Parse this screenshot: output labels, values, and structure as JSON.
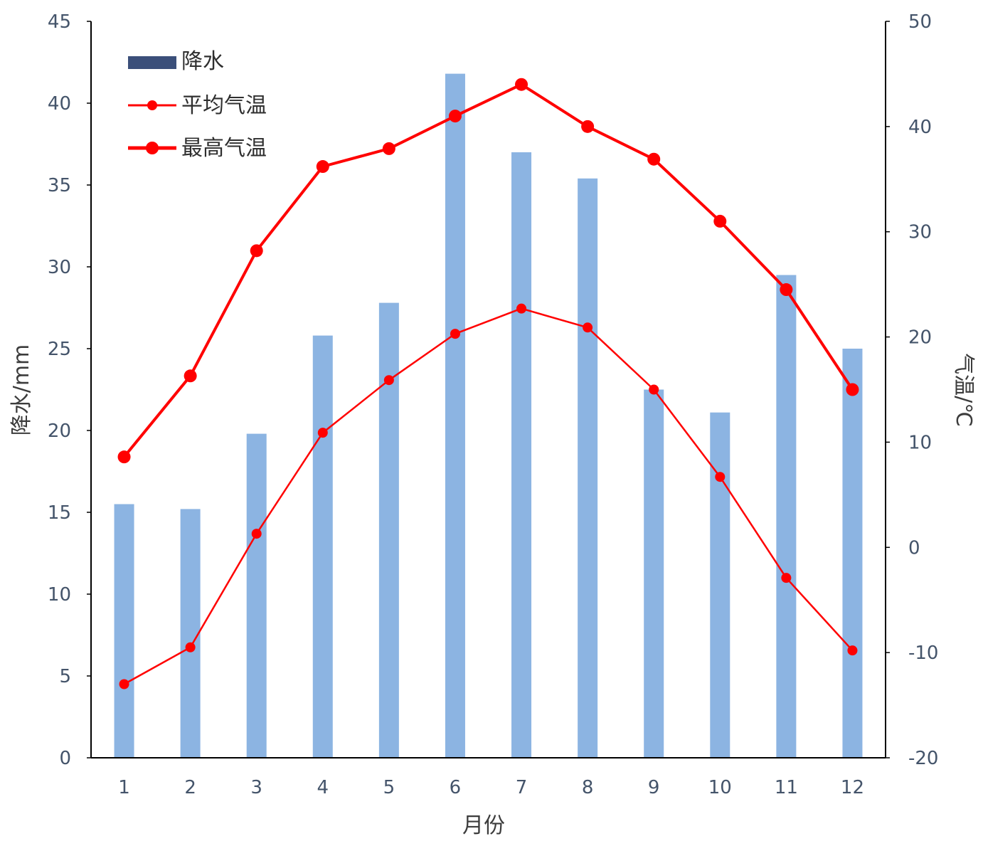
{
  "chart_data": {
    "type": "bar",
    "categories": [
      "1",
      "2",
      "3",
      "4",
      "5",
      "6",
      "7",
      "8",
      "9",
      "10",
      "11",
      "12"
    ],
    "xlabel": "月份",
    "ylabel": "降水/mm",
    "y2label": "气温/℃",
    "ylim": [
      0,
      45
    ],
    "y2lim": [
      -20,
      50
    ],
    "yticks": [
      "0",
      "5",
      "10",
      "15",
      "20",
      "25",
      "30",
      "35",
      "40",
      "45"
    ],
    "y2ticks": [
      "-20",
      "-10",
      "0",
      "10",
      "20",
      "30",
      "40",
      "50"
    ],
    "grid": false,
    "legend_position": "top-left",
    "series": [
      {
        "name": "降水",
        "type": "bar",
        "axis": "left",
        "color": "#8cb4e2",
        "legend_color": "#3b4f7a",
        "values": [
          15.5,
          15.2,
          19.8,
          25.8,
          27.8,
          41.8,
          37.0,
          35.4,
          22.5,
          21.1,
          29.5,
          25.0
        ]
      },
      {
        "name": "平均气温",
        "type": "line",
        "axis": "right",
        "color": "#ff0000",
        "marker": "small-circle",
        "values": [
          -13.0,
          -9.5,
          1.3,
          10.9,
          15.9,
          20.3,
          22.7,
          20.9,
          15.0,
          6.7,
          -2.9,
          -9.8
        ]
      },
      {
        "name": "最高气温",
        "type": "line",
        "axis": "right",
        "color": "#ff0000",
        "marker": "large-circle",
        "values": [
          8.6,
          16.3,
          28.2,
          36.2,
          37.9,
          41.0,
          44.0,
          40.0,
          36.9,
          31.0,
          24.5,
          15.0
        ]
      }
    ]
  }
}
